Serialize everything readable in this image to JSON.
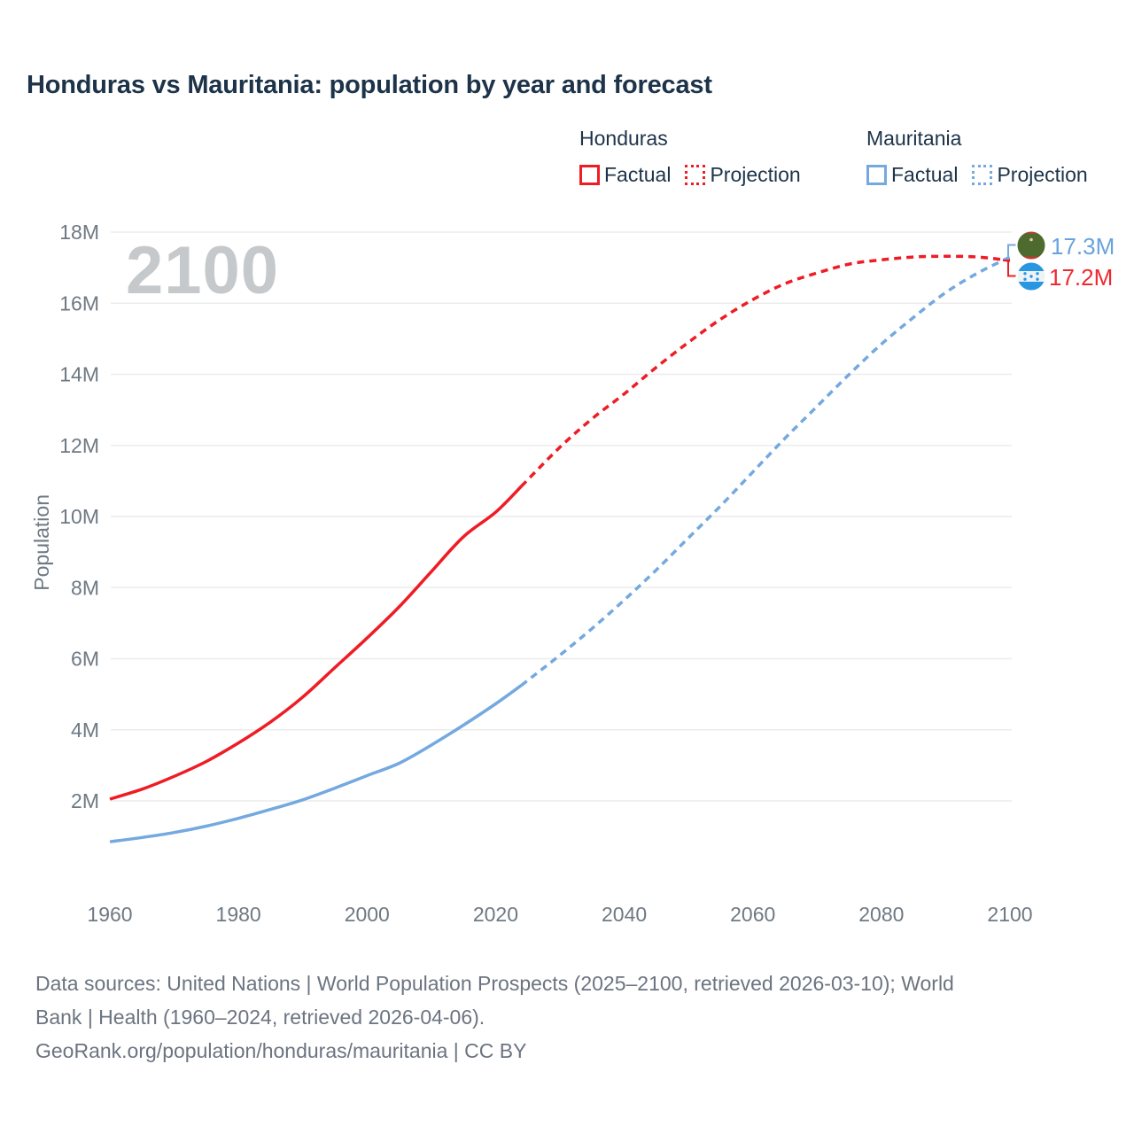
{
  "title": "Honduras vs Mauritania: population by year and forecast",
  "watermark": "2100",
  "legend": {
    "honduras": {
      "name": "Honduras",
      "factual": "Factual",
      "projection": "Projection"
    },
    "mauritania": {
      "name": "Mauritania",
      "factual": "Factual",
      "projection": "Projection"
    }
  },
  "colors": {
    "honduras": "#ee1c25",
    "mauritania": "#74a9e0",
    "grid": "#ececec",
    "tick_text": "#6e7983",
    "title_text": "#1d3349",
    "watermark_text": "#c6c9cb",
    "footer_text": "#6b7480"
  },
  "end_labels": {
    "mauritania": "17.3M",
    "honduras": "17.2M"
  },
  "flags": {
    "mauritania": "mauritania-flag",
    "honduras": "honduras-flag"
  },
  "footer": {
    "line1": "Data sources: United Nations | World Population Prospects (2025–2100, retrieved 2026-03-10); World",
    "line2": "Bank | Health (1960–2024, retrieved 2026-04-06).",
    "line3": "GeoRank.org/population/honduras/mauritania | CC BY"
  },
  "chart_data": {
    "type": "line",
    "title": "Honduras vs Mauritania: population by year and forecast",
    "xlabel": "",
    "ylabel": "Population",
    "xlim": [
      1960,
      2100
    ],
    "ylim": [
      0.5,
      18
    ],
    "grid": true,
    "legend_position": "top-right",
    "x_ticks": [
      1960,
      1980,
      2000,
      2020,
      2040,
      2060,
      2080,
      2100
    ],
    "y_ticks": [
      {
        "value": 2,
        "label": "2M"
      },
      {
        "value": 4,
        "label": "4M"
      },
      {
        "value": 6,
        "label": "6M"
      },
      {
        "value": 8,
        "label": "8M"
      },
      {
        "value": 10,
        "label": "10M"
      },
      {
        "value": 12,
        "label": "12M"
      },
      {
        "value": 14,
        "label": "14M"
      },
      {
        "value": 16,
        "label": "16M"
      },
      {
        "value": 18,
        "label": "18M"
      }
    ],
    "series": [
      {
        "name": "Honduras Factual",
        "country": "Honduras",
        "style": "solid",
        "color": "#ee1c25",
        "points": [
          [
            1960,
            2.05
          ],
          [
            1965,
            2.33
          ],
          [
            1970,
            2.69
          ],
          [
            1975,
            3.11
          ],
          [
            1980,
            3.63
          ],
          [
            1985,
            4.22
          ],
          [
            1990,
            4.92
          ],
          [
            1995,
            5.75
          ],
          [
            2000,
            6.58
          ],
          [
            2005,
            7.46
          ],
          [
            2010,
            8.45
          ],
          [
            2015,
            9.43
          ],
          [
            2020,
            10.12
          ],
          [
            2024,
            10.85
          ]
        ]
      },
      {
        "name": "Honduras Projection",
        "country": "Honduras",
        "style": "dashed",
        "color": "#ee1c25",
        "points": [
          [
            2024,
            10.85
          ],
          [
            2030,
            11.95
          ],
          [
            2035,
            12.75
          ],
          [
            2040,
            13.45
          ],
          [
            2045,
            14.2
          ],
          [
            2050,
            14.9
          ],
          [
            2055,
            15.55
          ],
          [
            2060,
            16.1
          ],
          [
            2065,
            16.55
          ],
          [
            2070,
            16.85
          ],
          [
            2075,
            17.1
          ],
          [
            2080,
            17.22
          ],
          [
            2085,
            17.3
          ],
          [
            2090,
            17.32
          ],
          [
            2095,
            17.3
          ],
          [
            2100,
            17.2
          ]
        ]
      },
      {
        "name": "Mauritania Factual",
        "country": "Mauritania",
        "style": "solid",
        "color": "#74a9e0",
        "points": [
          [
            1960,
            0.85
          ],
          [
            1965,
            0.97
          ],
          [
            1970,
            1.11
          ],
          [
            1975,
            1.29
          ],
          [
            1980,
            1.51
          ],
          [
            1985,
            1.76
          ],
          [
            1990,
            2.03
          ],
          [
            1995,
            2.36
          ],
          [
            2000,
            2.71
          ],
          [
            2005,
            3.06
          ],
          [
            2010,
            3.57
          ],
          [
            2015,
            4.13
          ],
          [
            2020,
            4.73
          ],
          [
            2024,
            5.25
          ]
        ]
      },
      {
        "name": "Mauritania Projection",
        "country": "Mauritania",
        "style": "dashed",
        "color": "#74a9e0",
        "points": [
          [
            2024,
            5.25
          ],
          [
            2030,
            6.1
          ],
          [
            2035,
            6.85
          ],
          [
            2040,
            7.65
          ],
          [
            2045,
            8.5
          ],
          [
            2050,
            9.4
          ],
          [
            2055,
            10.3
          ],
          [
            2060,
            11.25
          ],
          [
            2065,
            12.2
          ],
          [
            2070,
            13.1
          ],
          [
            2075,
            14.0
          ],
          [
            2080,
            14.85
          ],
          [
            2085,
            15.6
          ],
          [
            2090,
            16.3
          ],
          [
            2095,
            16.85
          ],
          [
            2100,
            17.3
          ]
        ]
      }
    ],
    "end_values": [
      {
        "series": "Mauritania",
        "year": 2100,
        "value_label": "17.3M"
      },
      {
        "series": "Honduras",
        "year": 2100,
        "value_label": "17.2M"
      }
    ]
  }
}
